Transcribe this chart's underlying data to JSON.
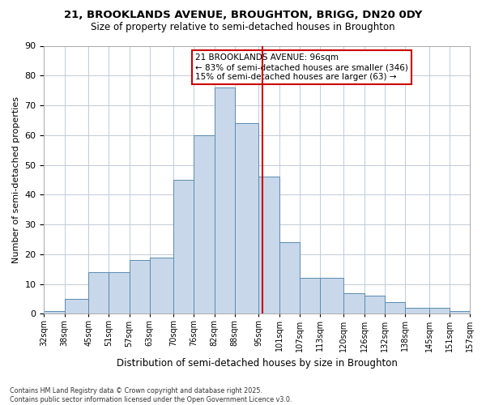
{
  "title1": "21, BROOKLANDS AVENUE, BROUGHTON, BRIGG, DN20 0DY",
  "title2": "Size of property relative to semi-detached houses in Broughton",
  "xlabel": "Distribution of semi-detached houses by size in Broughton",
  "ylabel": "Number of semi-detached properties",
  "footnote": "Contains HM Land Registry data © Crown copyright and database right 2025.\nContains public sector information licensed under the Open Government Licence v3.0.",
  "bin_labels": [
    "32sqm",
    "38sqm",
    "45sqm",
    "51sqm",
    "57sqm",
    "63sqm",
    "70sqm",
    "76sqm",
    "82sqm",
    "88sqm",
    "95sqm",
    "101sqm",
    "107sqm",
    "113sqm",
    "120sqm",
    "126sqm",
    "132sqm",
    "138sqm",
    "145sqm",
    "151sqm",
    "157sqm"
  ],
  "bin_edges": [
    32,
    38,
    45,
    51,
    57,
    63,
    70,
    76,
    82,
    88,
    95,
    101,
    107,
    113,
    120,
    126,
    132,
    138,
    145,
    151,
    157
  ],
  "bar_heights": [
    1,
    5,
    14,
    14,
    18,
    19,
    45,
    60,
    76,
    64,
    46,
    24,
    12,
    12,
    7,
    6,
    4,
    2,
    2,
    1
  ],
  "property_line_x": 96,
  "legend_text1": "21 BROOKLANDS AVENUE: 96sqm",
  "legend_text2": "← 83% of semi-detached houses are smaller (346)",
  "legend_text3": "15% of semi-detached houses are larger (63) →",
  "bar_color": "#c8d8ea",
  "bar_edge_color": "#5a8ab0",
  "line_color": "#cc0000",
  "box_edge_color": "#cc0000",
  "background_color": "#ffffff",
  "grid_color": "#c0ccd8",
  "ylim": [
    0,
    90
  ],
  "yticks": [
    0,
    10,
    20,
    30,
    40,
    50,
    60,
    70,
    80,
    90
  ]
}
